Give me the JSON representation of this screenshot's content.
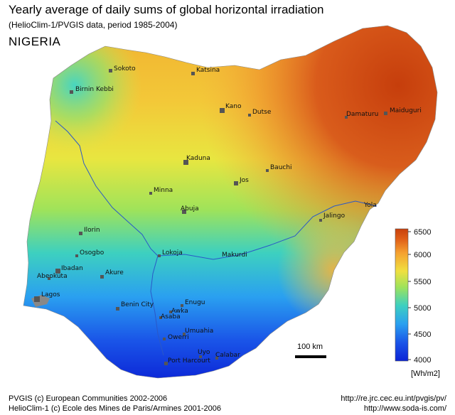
{
  "header": {
    "title": "Yearly average of daily sums of global horizontal irradiation",
    "subtitle": "(HelioClim-1/PVGIS data, period 1985-2004)",
    "country": "NIGERIA"
  },
  "legend": {
    "ticks": [
      "6500",
      "6000",
      "5500",
      "5000",
      "4500",
      "4000"
    ],
    "unit": "[Wh/m2]",
    "range": [
      4000,
      6500
    ],
    "colors": [
      "#0b23d6",
      "#2aa0f0",
      "#3dd0c0",
      "#9fe35a",
      "#f0e040",
      "#f5a030",
      "#e06018",
      "#c8400c"
    ]
  },
  "scale_bar": {
    "label": "100 km"
  },
  "cities": [
    {
      "name": "Sokoto"
    },
    {
      "name": "Katsina"
    },
    {
      "name": "Birnin Kebbi"
    },
    {
      "name": "Kano"
    },
    {
      "name": "Dutse"
    },
    {
      "name": "Damaturu"
    },
    {
      "name": "Maiduguri"
    },
    {
      "name": "Kaduna"
    },
    {
      "name": "Bauchi"
    },
    {
      "name": "Jos"
    },
    {
      "name": "Minna"
    },
    {
      "name": "Abuja"
    },
    {
      "name": "Jalingo"
    },
    {
      "name": "Ilorin"
    },
    {
      "name": "Lokoja"
    },
    {
      "name": "Osogbo"
    },
    {
      "name": "Ibadan"
    },
    {
      "name": "Abeokuta"
    },
    {
      "name": "Akure"
    },
    {
      "name": "Lagos"
    },
    {
      "name": "Benin City"
    },
    {
      "name": "Enugu"
    },
    {
      "name": "Awka"
    },
    {
      "name": "Asaba"
    },
    {
      "name": "Owerri"
    },
    {
      "name": "Umuahia"
    },
    {
      "name": "Uyo"
    },
    {
      "name": "Calabar"
    },
    {
      "name": "Port Harcourt"
    }
  ],
  "rivers": [
    {
      "name": "Yola"
    },
    {
      "name": "Makurdi"
    }
  ],
  "footer": {
    "left_line1": "PVGIS (c) European Communities 2002-2006",
    "left_line2": "HelioClim-1 (c) Ecole des Mines de Paris/Armines 2001-2006",
    "right_line1": "http://re.jrc.cec.eu.int/pvgis/pv/",
    "right_line2": "http://www.soda-is.com/"
  }
}
